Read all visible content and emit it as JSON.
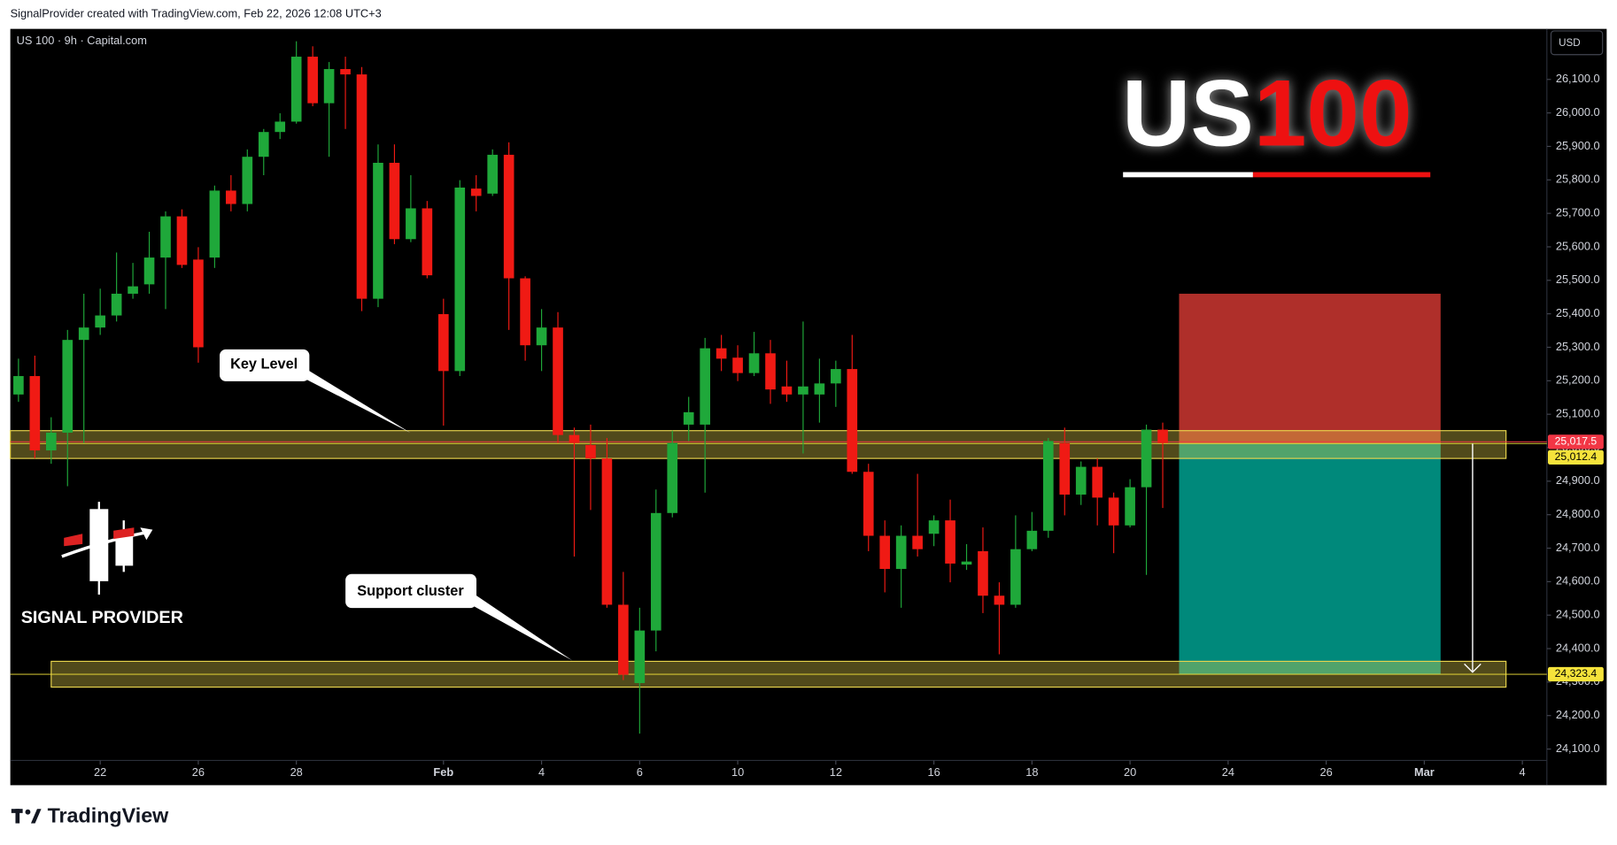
{
  "page": {
    "header": "SignalProvider created with TradingView.com, Feb 22, 2026 12:08 UTC+3",
    "logo_text": "SIGNAL PROVIDER",
    "footer": "TradingView"
  },
  "chart_data": {
    "type": "candlestick",
    "title": [
      "US",
      "100"
    ],
    "symbol_info": "US 100 · 9h · Capital.com",
    "currency": "USD",
    "annotations": [
      {
        "text": "Key Level"
      },
      {
        "text": "Support cluster"
      }
    ],
    "up_color": "#1fa83a",
    "down_color": "#f01a14",
    "grid": false,
    "open": [
      25159,
      25214,
      24992,
      25045,
      25322,
      25359,
      25395,
      25460,
      25488,
      25568,
      25691,
      25562,
      25568,
      25768,
      25728,
      25869,
      25943,
      25974,
      26168,
      26029,
      26131,
      26115,
      25445,
      25851,
      25623,
      25715,
      25399,
      25229,
      25774,
      25759,
      25875,
      25506,
      25306,
      25359,
      25038,
      25008,
      24968,
      24531,
      24297,
      24454,
      24805,
      25069,
      25069,
      25297,
      25269,
      25223,
      25282,
      25183,
      25159,
      25159,
      25192,
      25235,
      24928,
      24737,
      24638,
      24737,
      24743,
      24783,
      24651,
      24691,
      24558,
      24531,
      24697,
      24752,
      25014,
      24860,
      24943,
      24851,
      24768,
      24882,
      25054
    ],
    "high": [
      25266,
      25275,
      25091,
      25352,
      25460,
      25475,
      25583,
      25552,
      25645,
      25706,
      25712,
      25599,
      25783,
      25814,
      25891,
      25952,
      25999,
      26214,
      26199,
      26152,
      26168,
      26137,
      25906,
      25906,
      25814,
      25737,
      25445,
      25799,
      25814,
      25891,
      25912,
      25512,
      25414,
      25405,
      25060,
      25069,
      25029,
      24629,
      24522,
      24875,
      25051,
      25152,
      25328,
      25337,
      25306,
      25346,
      25322,
      25260,
      25377,
      25266,
      25260,
      25337,
      24952,
      24783,
      24768,
      24922,
      24798,
      24845,
      24712,
      24762,
      24598,
      24798,
      24808,
      25029,
      25060,
      24959,
      24968,
      24866,
      24906,
      25069,
      25075
    ],
    "low": [
      25137,
      24968,
      24952,
      24885,
      25014,
      25337,
      25377,
      25445,
      25460,
      25414,
      25537,
      25254,
      25537,
      25706,
      25706,
      25814,
      25922,
      25968,
      26020,
      25869,
      25952,
      25408,
      25420,
      25608,
      25614,
      25506,
      25066,
      25214,
      25706,
      25752,
      25352,
      25260,
      25229,
      25014,
      24675,
      24814,
      24522,
      24306,
      24146,
      24392,
      24792,
      25020,
      24866,
      25229,
      25199,
      25214,
      25131,
      25137,
      24983,
      25075,
      25122,
      24922,
      24691,
      24568,
      24522,
      24675,
      24706,
      24598,
      24635,
      24506,
      24383,
      24522,
      24691,
      24731,
      24798,
      24829,
      24768,
      24685,
      24762,
      24620,
      24820
    ],
    "close": [
      25214,
      24992,
      25045,
      25322,
      25359,
      25395,
      25460,
      25482,
      25568,
      25691,
      25546,
      25300,
      25768,
      25728,
      25869,
      25943,
      25974,
      26168,
      26029,
      26131,
      26115,
      25445,
      25851,
      25623,
      25715,
      25515,
      25229,
      25777,
      25752,
      25875,
      25506,
      25306,
      25359,
      25038,
      25014,
      24968,
      24531,
      24322,
      24454,
      24805,
      25014,
      25106,
      25297,
      25266,
      25223,
      25282,
      25174,
      25159,
      25183,
      25192,
      25235,
      24928,
      24737,
      24638,
      24737,
      24697,
      24783,
      24654,
      24660,
      24558,
      24531,
      24697,
      24752,
      25020,
      24860,
      24943,
      24851,
      24768,
      24882,
      25054,
      25014
    ],
    "xlim": [
      -0.5,
      93.5
    ],
    "ylim": [
      23992,
      26251
    ],
    "xticks": [
      {
        "value": 5,
        "label": "22"
      },
      {
        "value": 11,
        "label": "26"
      },
      {
        "value": 17,
        "label": "28"
      },
      {
        "value": 26,
        "label": "Feb"
      },
      {
        "value": 32,
        "label": "4"
      },
      {
        "value": 38,
        "label": "6"
      },
      {
        "value": 44,
        "label": "10"
      },
      {
        "value": 50,
        "label": "12"
      },
      {
        "value": 56,
        "label": "16"
      },
      {
        "value": 62,
        "label": "18"
      },
      {
        "value": 68,
        "label": "20"
      },
      {
        "value": 74,
        "label": "24"
      },
      {
        "value": 80,
        "label": "26"
      },
      {
        "value": 86,
        "label": "Mar"
      },
      {
        "value": 92,
        "label": "4"
      }
    ],
    "yticks": [
      {
        "value": 24100,
        "label": "24,100.0"
      },
      {
        "value": 24200,
        "label": "24,200.0"
      },
      {
        "value": 24300,
        "label": "24,300.0"
      },
      {
        "value": 24400,
        "label": "24,400.0"
      },
      {
        "value": 24500,
        "label": "24,500.0"
      },
      {
        "value": 24600,
        "label": "24,600.0"
      },
      {
        "value": 24700,
        "label": "24,700.0"
      },
      {
        "value": 24800,
        "label": "24,800.0"
      },
      {
        "value": 24900,
        "label": "24,900.0"
      },
      {
        "value": 25000,
        "label": "25,000.0"
      },
      {
        "value": 25100,
        "label": "25,100.0"
      },
      {
        "value": 25200,
        "label": "25,200.0"
      },
      {
        "value": 25300,
        "label": "25,300.0"
      },
      {
        "value": 25400,
        "label": "25,400.0"
      },
      {
        "value": 25500,
        "label": "25,500.0"
      },
      {
        "value": 25600,
        "label": "25,600.0"
      },
      {
        "value": 25700,
        "label": "25,700.0"
      },
      {
        "value": 25800,
        "label": "25,800.0"
      },
      {
        "value": 25900,
        "label": "25,900.0"
      },
      {
        "value": 26000,
        "label": "26,000.0"
      },
      {
        "value": 26100,
        "label": "26,100.0"
      }
    ],
    "zones": [
      {
        "low": 24968,
        "high": 25051,
        "start": -0.5,
        "end": 91
      },
      {
        "low": 24285,
        "high": 24362,
        "start": 2,
        "end": 91
      }
    ],
    "zone_color": "#e8d44d",
    "position": {
      "entry": 25012.4,
      "stop": 25460,
      "target": 24323.4,
      "start": 71,
      "end": 87,
      "stop_color": "#b8322c",
      "target_color": "#00897b"
    },
    "price_labels": [
      {
        "value": 25017.5,
        "label": "25,017.5",
        "color": "#f23645",
        "text_color": "#ffffff"
      },
      {
        "value": 25012.4,
        "label": "25,012.4",
        "color": "#f5e33b",
        "text_color": "#000000"
      },
      {
        "value": 24323.4,
        "label": "24,323.4",
        "color": "#f5e33b",
        "text_color": "#000000"
      }
    ]
  }
}
